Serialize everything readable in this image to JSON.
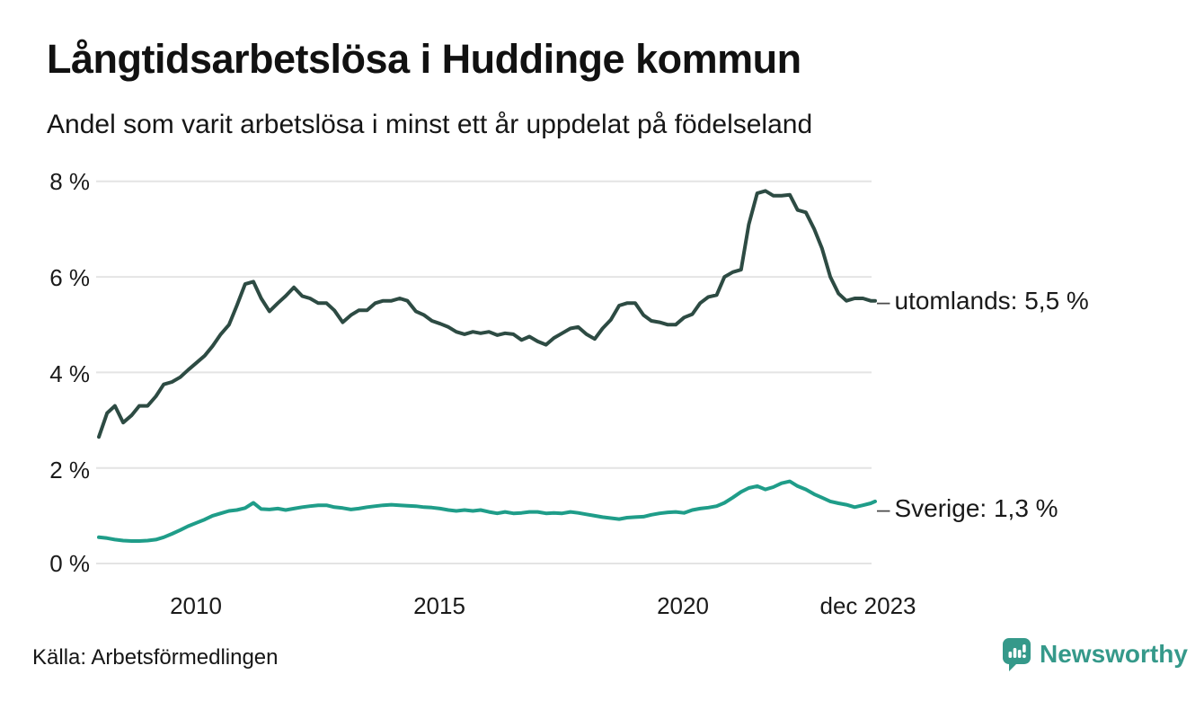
{
  "title": "Långtidsarbetslösa i Huddinge kommun",
  "subtitle": "Andel som varit arbetslösa i minst ett år uppdelat på födelseland",
  "source": "Källa: Arbetsförmedlingen",
  "branding": {
    "name": "Newsworthy",
    "color": "#35998a"
  },
  "colors": {
    "utomlands_line": "#2d4b43",
    "sverige_line": "#1f9d89",
    "grid": "#e4e4e4",
    "text": "#1a1a1a"
  },
  "chart_data": {
    "type": "line",
    "title": "Långtidsarbetslösa i Huddinge kommun",
    "subtitle": "Andel som varit arbetslösa i minst ett år uppdelat på födelseland",
    "grid": "horizontal",
    "legend_position": "end-of-line-labels",
    "end_label_dash": "–",
    "y_axis": {
      "unit": "%",
      "range": [
        0,
        8
      ],
      "ticks": [
        "8 %",
        "6 %",
        "4 %",
        "2 %",
        "0 %"
      ],
      "gridline_values": [
        8,
        6,
        4,
        2,
        0
      ]
    },
    "x_axis": {
      "range": [
        2008.0,
        2023.92
      ],
      "ticks": [
        "2010",
        "2015",
        "2020",
        "dec 2023"
      ],
      "tick_years": [
        2010,
        2015,
        2020,
        2023.92
      ]
    },
    "x": [
      2008.0,
      2008.17,
      2008.33,
      2008.5,
      2008.67,
      2008.83,
      2009.0,
      2009.17,
      2009.33,
      2009.5,
      2009.67,
      2009.83,
      2010.0,
      2010.17,
      2010.33,
      2010.5,
      2010.67,
      2010.83,
      2011.0,
      2011.17,
      2011.33,
      2011.5,
      2011.67,
      2011.83,
      2012.0,
      2012.17,
      2012.33,
      2012.5,
      2012.67,
      2012.83,
      2013.0,
      2013.17,
      2013.33,
      2013.5,
      2013.67,
      2013.83,
      2014.0,
      2014.17,
      2014.33,
      2014.5,
      2014.67,
      2014.83,
      2015.0,
      2015.17,
      2015.33,
      2015.5,
      2015.67,
      2015.83,
      2016.0,
      2016.17,
      2016.33,
      2016.5,
      2016.67,
      2016.83,
      2017.0,
      2017.17,
      2017.33,
      2017.5,
      2017.67,
      2017.83,
      2018.0,
      2018.17,
      2018.33,
      2018.5,
      2018.67,
      2018.83,
      2019.0,
      2019.17,
      2019.33,
      2019.5,
      2019.67,
      2019.83,
      2020.0,
      2020.17,
      2020.33,
      2020.5,
      2020.67,
      2020.83,
      2021.0,
      2021.17,
      2021.33,
      2021.5,
      2021.67,
      2021.83,
      2022.0,
      2022.17,
      2022.33,
      2022.5,
      2022.67,
      2022.83,
      2023.0,
      2023.17,
      2023.33,
      2023.5,
      2023.67,
      2023.83,
      2023.92
    ],
    "series": [
      {
        "name": "utomlands",
        "end_label": "utomlands: 5,5 %",
        "last_value_label": "5,5 %",
        "color": "#2d4b43",
        "stroke_width": 4,
        "values": [
          2.65,
          3.15,
          3.3,
          2.95,
          3.1,
          3.3,
          3.3,
          3.5,
          3.75,
          3.8,
          3.9,
          4.05,
          4.2,
          4.35,
          4.55,
          4.8,
          5.0,
          5.4,
          5.85,
          5.9,
          5.55,
          5.28,
          5.45,
          5.6,
          5.78,
          5.6,
          5.55,
          5.45,
          5.45,
          5.3,
          5.05,
          5.2,
          5.3,
          5.3,
          5.45,
          5.5,
          5.5,
          5.55,
          5.5,
          5.28,
          5.2,
          5.08,
          5.02,
          4.95,
          4.85,
          4.8,
          4.85,
          4.82,
          4.85,
          4.78,
          4.82,
          4.8,
          4.68,
          4.75,
          4.65,
          4.58,
          4.72,
          4.82,
          4.92,
          4.95,
          4.8,
          4.7,
          4.92,
          5.1,
          5.4,
          5.45,
          5.45,
          5.2,
          5.08,
          5.05,
          5.0,
          5.0,
          5.15,
          5.22,
          5.45,
          5.58,
          5.62,
          6.0,
          6.1,
          6.15,
          7.1,
          7.75,
          7.8,
          7.7,
          7.7,
          7.72,
          7.4,
          7.35,
          7.0,
          6.6,
          6.0,
          5.65,
          5.5,
          5.55,
          5.55,
          5.5,
          5.5
        ]
      },
      {
        "name": "Sverige",
        "end_label": "Sverige: 1,3 %",
        "last_value_label": "1,3 %",
        "color": "#1f9d89",
        "stroke_width": 4,
        "values": [
          0.55,
          0.53,
          0.5,
          0.48,
          0.47,
          0.47,
          0.48,
          0.5,
          0.55,
          0.62,
          0.7,
          0.78,
          0.85,
          0.92,
          1.0,
          1.05,
          1.1,
          1.12,
          1.16,
          1.27,
          1.14,
          1.13,
          1.15,
          1.12,
          1.15,
          1.18,
          1.2,
          1.22,
          1.22,
          1.18,
          1.16,
          1.13,
          1.15,
          1.18,
          1.2,
          1.22,
          1.23,
          1.22,
          1.21,
          1.2,
          1.18,
          1.17,
          1.15,
          1.12,
          1.1,
          1.12,
          1.1,
          1.12,
          1.08,
          1.05,
          1.08,
          1.05,
          1.06,
          1.08,
          1.08,
          1.05,
          1.06,
          1.05,
          1.08,
          1.06,
          1.03,
          1.0,
          0.97,
          0.95,
          0.93,
          0.96,
          0.97,
          0.98,
          1.02,
          1.05,
          1.07,
          1.08,
          1.06,
          1.12,
          1.15,
          1.17,
          1.2,
          1.27,
          1.38,
          1.5,
          1.58,
          1.62,
          1.55,
          1.6,
          1.68,
          1.72,
          1.62,
          1.55,
          1.45,
          1.38,
          1.3,
          1.26,
          1.23,
          1.18,
          1.22,
          1.26,
          1.3
        ]
      }
    ]
  }
}
